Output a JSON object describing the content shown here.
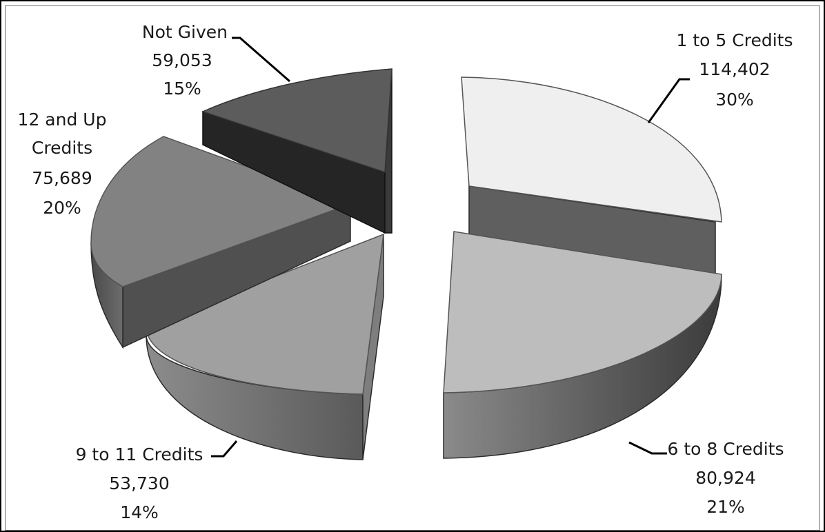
{
  "chart_data": {
    "type": "pie",
    "style": "3d-exploded",
    "slices": [
      {
        "label": "1 to 5 Credits",
        "label_lines": [
          "1 to 5 Credits"
        ],
        "value": 114402,
        "value_text": "114,402",
        "percent": 30,
        "percent_text": "30%",
        "color": "#efefef"
      },
      {
        "label": "6 to 8 Credits",
        "label_lines": [
          "6 to 8 Credits"
        ],
        "value": 80924,
        "value_text": "80,924",
        "percent": 21,
        "percent_text": "21%",
        "color": "#bdbdbd"
      },
      {
        "label": "9 to 11 Credits",
        "label_lines": [
          "9 to 11 Credits"
        ],
        "value": 53730,
        "value_text": "53,730",
        "percent": 14,
        "percent_text": "14%",
        "color": "#a0a0a0"
      },
      {
        "label": "12 and Up Credits",
        "label_lines": [
          "12 and Up",
          "Credits"
        ],
        "value": 75689,
        "value_text": "75,689",
        "percent": 20,
        "percent_text": "20%",
        "color": "#828282"
      },
      {
        "label": "Not Given",
        "label_lines": [
          "Not Given"
        ],
        "value": 59053,
        "value_text": "59,053",
        "percent": 15,
        "percent_text": "15%",
        "color": "#5c5c5c"
      }
    ]
  }
}
